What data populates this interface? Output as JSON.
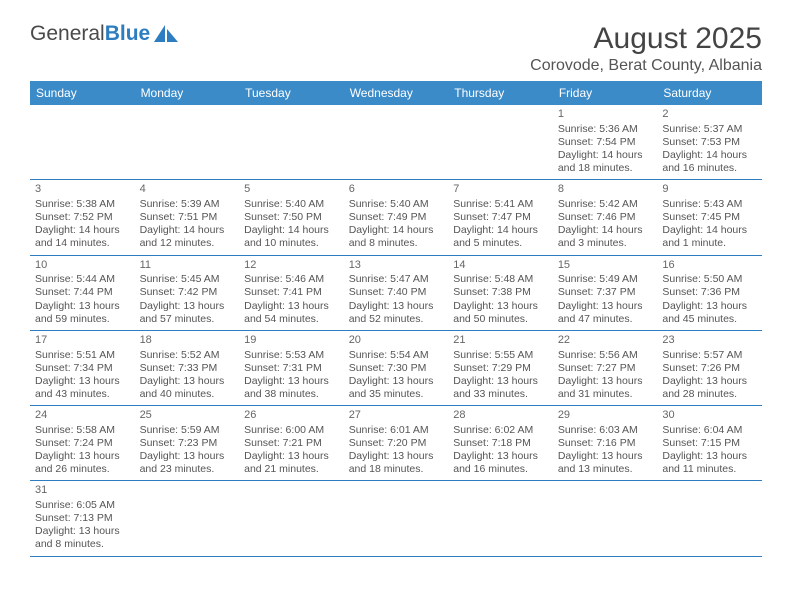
{
  "logo": {
    "text1": "General",
    "text2": "Blue"
  },
  "title": "August 2025",
  "location": "Corovode, Berat County, Albania",
  "colors": {
    "header_bg": "#3b8bc9",
    "header_text": "#ffffff",
    "border": "#2d7dc0",
    "body_text": "#555555",
    "title_text": "#444444",
    "logo_gray": "#4a4a4a",
    "logo_blue": "#2d7dc0",
    "background": "#ffffff"
  },
  "day_headers": [
    "Sunday",
    "Monday",
    "Tuesday",
    "Wednesday",
    "Thursday",
    "Friday",
    "Saturday"
  ],
  "weeks": [
    [
      null,
      null,
      null,
      null,
      null,
      {
        "n": "1",
        "sr": "Sunrise: 5:36 AM",
        "ss": "Sunset: 7:54 PM",
        "dl": "Daylight: 14 hours and 18 minutes."
      },
      {
        "n": "2",
        "sr": "Sunrise: 5:37 AM",
        "ss": "Sunset: 7:53 PM",
        "dl": "Daylight: 14 hours and 16 minutes."
      }
    ],
    [
      {
        "n": "3",
        "sr": "Sunrise: 5:38 AM",
        "ss": "Sunset: 7:52 PM",
        "dl": "Daylight: 14 hours and 14 minutes."
      },
      {
        "n": "4",
        "sr": "Sunrise: 5:39 AM",
        "ss": "Sunset: 7:51 PM",
        "dl": "Daylight: 14 hours and 12 minutes."
      },
      {
        "n": "5",
        "sr": "Sunrise: 5:40 AM",
        "ss": "Sunset: 7:50 PM",
        "dl": "Daylight: 14 hours and 10 minutes."
      },
      {
        "n": "6",
        "sr": "Sunrise: 5:40 AM",
        "ss": "Sunset: 7:49 PM",
        "dl": "Daylight: 14 hours and 8 minutes."
      },
      {
        "n": "7",
        "sr": "Sunrise: 5:41 AM",
        "ss": "Sunset: 7:47 PM",
        "dl": "Daylight: 14 hours and 5 minutes."
      },
      {
        "n": "8",
        "sr": "Sunrise: 5:42 AM",
        "ss": "Sunset: 7:46 PM",
        "dl": "Daylight: 14 hours and 3 minutes."
      },
      {
        "n": "9",
        "sr": "Sunrise: 5:43 AM",
        "ss": "Sunset: 7:45 PM",
        "dl": "Daylight: 14 hours and 1 minute."
      }
    ],
    [
      {
        "n": "10",
        "sr": "Sunrise: 5:44 AM",
        "ss": "Sunset: 7:44 PM",
        "dl": "Daylight: 13 hours and 59 minutes."
      },
      {
        "n": "11",
        "sr": "Sunrise: 5:45 AM",
        "ss": "Sunset: 7:42 PM",
        "dl": "Daylight: 13 hours and 57 minutes."
      },
      {
        "n": "12",
        "sr": "Sunrise: 5:46 AM",
        "ss": "Sunset: 7:41 PM",
        "dl": "Daylight: 13 hours and 54 minutes."
      },
      {
        "n": "13",
        "sr": "Sunrise: 5:47 AM",
        "ss": "Sunset: 7:40 PM",
        "dl": "Daylight: 13 hours and 52 minutes."
      },
      {
        "n": "14",
        "sr": "Sunrise: 5:48 AM",
        "ss": "Sunset: 7:38 PM",
        "dl": "Daylight: 13 hours and 50 minutes."
      },
      {
        "n": "15",
        "sr": "Sunrise: 5:49 AM",
        "ss": "Sunset: 7:37 PM",
        "dl": "Daylight: 13 hours and 47 minutes."
      },
      {
        "n": "16",
        "sr": "Sunrise: 5:50 AM",
        "ss": "Sunset: 7:36 PM",
        "dl": "Daylight: 13 hours and 45 minutes."
      }
    ],
    [
      {
        "n": "17",
        "sr": "Sunrise: 5:51 AM",
        "ss": "Sunset: 7:34 PM",
        "dl": "Daylight: 13 hours and 43 minutes."
      },
      {
        "n": "18",
        "sr": "Sunrise: 5:52 AM",
        "ss": "Sunset: 7:33 PM",
        "dl": "Daylight: 13 hours and 40 minutes."
      },
      {
        "n": "19",
        "sr": "Sunrise: 5:53 AM",
        "ss": "Sunset: 7:31 PM",
        "dl": "Daylight: 13 hours and 38 minutes."
      },
      {
        "n": "20",
        "sr": "Sunrise: 5:54 AM",
        "ss": "Sunset: 7:30 PM",
        "dl": "Daylight: 13 hours and 35 minutes."
      },
      {
        "n": "21",
        "sr": "Sunrise: 5:55 AM",
        "ss": "Sunset: 7:29 PM",
        "dl": "Daylight: 13 hours and 33 minutes."
      },
      {
        "n": "22",
        "sr": "Sunrise: 5:56 AM",
        "ss": "Sunset: 7:27 PM",
        "dl": "Daylight: 13 hours and 31 minutes."
      },
      {
        "n": "23",
        "sr": "Sunrise: 5:57 AM",
        "ss": "Sunset: 7:26 PM",
        "dl": "Daylight: 13 hours and 28 minutes."
      }
    ],
    [
      {
        "n": "24",
        "sr": "Sunrise: 5:58 AM",
        "ss": "Sunset: 7:24 PM",
        "dl": "Daylight: 13 hours and 26 minutes."
      },
      {
        "n": "25",
        "sr": "Sunrise: 5:59 AM",
        "ss": "Sunset: 7:23 PM",
        "dl": "Daylight: 13 hours and 23 minutes."
      },
      {
        "n": "26",
        "sr": "Sunrise: 6:00 AM",
        "ss": "Sunset: 7:21 PM",
        "dl": "Daylight: 13 hours and 21 minutes."
      },
      {
        "n": "27",
        "sr": "Sunrise: 6:01 AM",
        "ss": "Sunset: 7:20 PM",
        "dl": "Daylight: 13 hours and 18 minutes."
      },
      {
        "n": "28",
        "sr": "Sunrise: 6:02 AM",
        "ss": "Sunset: 7:18 PM",
        "dl": "Daylight: 13 hours and 16 minutes."
      },
      {
        "n": "29",
        "sr": "Sunrise: 6:03 AM",
        "ss": "Sunset: 7:16 PM",
        "dl": "Daylight: 13 hours and 13 minutes."
      },
      {
        "n": "30",
        "sr": "Sunrise: 6:04 AM",
        "ss": "Sunset: 7:15 PM",
        "dl": "Daylight: 13 hours and 11 minutes."
      }
    ],
    [
      {
        "n": "31",
        "sr": "Sunrise: 6:05 AM",
        "ss": "Sunset: 7:13 PM",
        "dl": "Daylight: 13 hours and 8 minutes."
      },
      null,
      null,
      null,
      null,
      null,
      null
    ]
  ]
}
